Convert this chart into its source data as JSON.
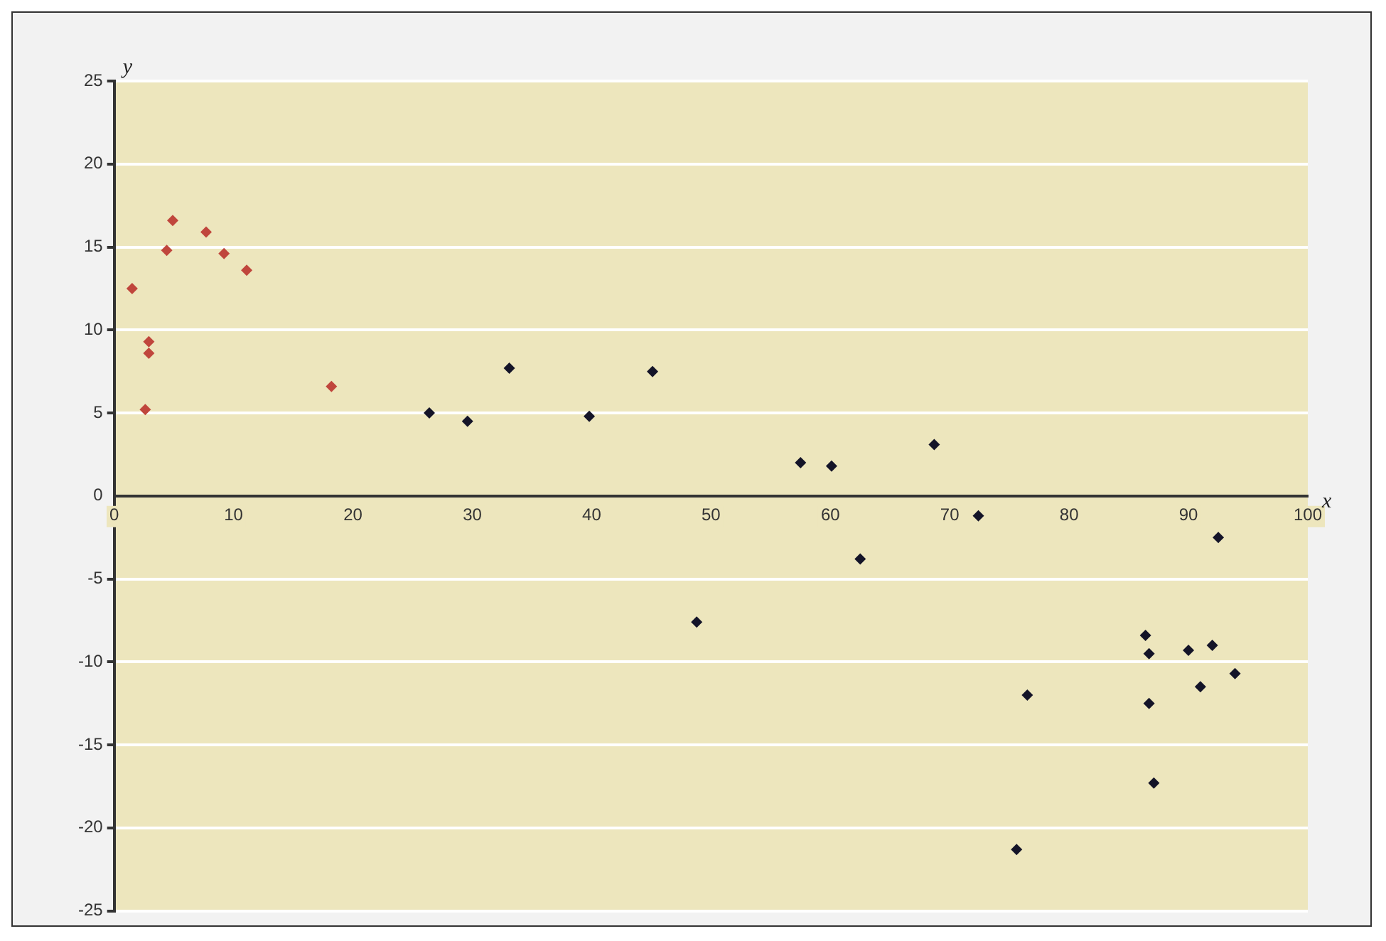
{
  "chart_data": {
    "type": "scatter",
    "xlabel": "x",
    "ylabel": "y",
    "series": [
      {
        "color": "#c0463c",
        "x": [
          1.5,
          2.9,
          2.9,
          2.6,
          4.4,
          4.9,
          7.7,
          9.2,
          11.1,
          18.2
        ],
        "values": [
          12.5,
          9.3,
          8.6,
          5.2,
          14.8,
          16.6,
          15.9,
          14.6,
          13.6,
          6.6
        ]
      },
      {
        "color": "#141428",
        "x": [
          26.4,
          29.6,
          33.1,
          39.8,
          45.1,
          48.8,
          57.5,
          60.1,
          62.5,
          68.7,
          72.4,
          75.6,
          76.5,
          86.4,
          86.7,
          86.7,
          87.1,
          90,
          92,
          91,
          92.5,
          93.9
        ],
        "values": [
          5.0,
          4.5,
          7.7,
          4.8,
          7.5,
          -7.6,
          2.0,
          1.8,
          -3.8,
          3.1,
          -1.2,
          -21.3,
          -12.0,
          -8.4,
          -9.5,
          -12.5,
          -17.3,
          -9.3,
          -9.0,
          -11.5,
          -2.5,
          -10.7
        ]
      }
    ],
    "xlim": [
      0,
      100
    ],
    "xticks": [
      0,
      10,
      20,
      30,
      40,
      50,
      60,
      70,
      80,
      90,
      100
    ],
    "ylim": [
      -25,
      25
    ],
    "yticks": [
      -25,
      -20,
      -15,
      -10,
      -5,
      0,
      5,
      10,
      15,
      20,
      25
    ],
    "grid": "y",
    "marker": "diamond"
  }
}
